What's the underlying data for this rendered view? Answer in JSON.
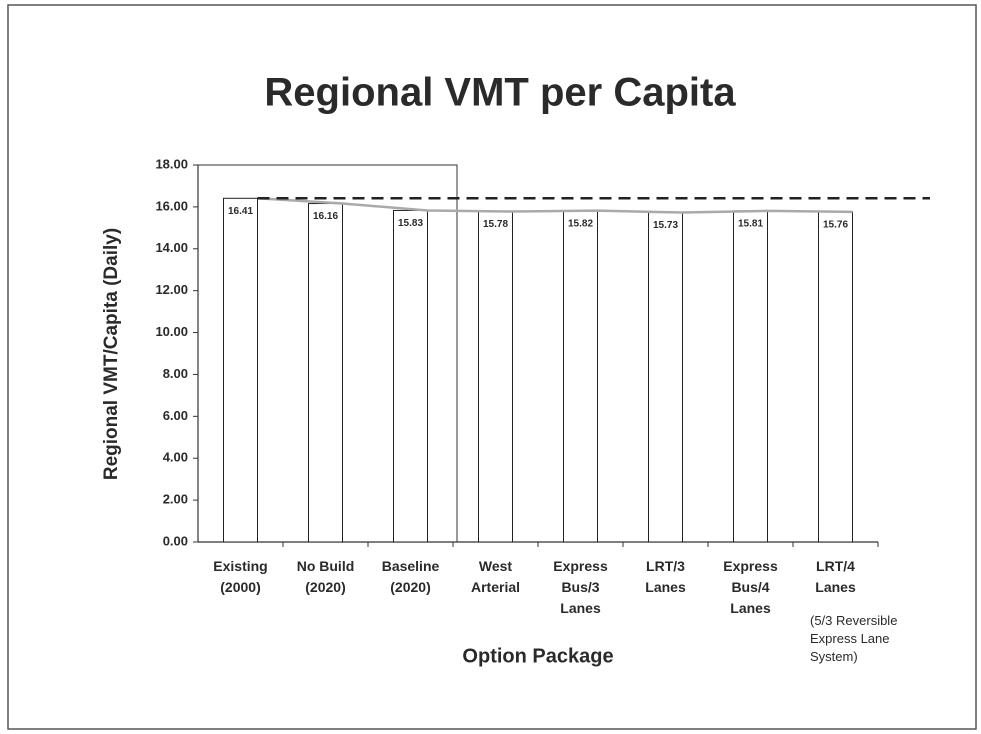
{
  "chart_data": {
    "type": "bar",
    "title": "Regional VMT per Capita",
    "y_label": "Regional VMT/Capita (Daily)",
    "x_label": "Option Package",
    "categories": [
      "Existing\n(2000)",
      "No Build\n(2020)",
      "Baseline\n(2020)",
      "West\nArterial",
      "Express\nBus/3\nLanes",
      "LRT/3\nLanes",
      "Express\nBus/4\nLanes",
      "LRT/4\nLanes"
    ],
    "values": [
      16.41,
      16.16,
      15.83,
      15.78,
      15.82,
      15.73,
      15.81,
      15.76
    ],
    "color": "#ffffff",
    "ylim": [
      0,
      18
    ],
    "yticks": [
      {
        "value": 0,
        "label": "0.00"
      },
      {
        "value": 2,
        "label": "2.00"
      },
      {
        "value": 4,
        "label": "4.00"
      },
      {
        "value": 6,
        "label": "6.00"
      },
      {
        "value": 8,
        "label": "8.00"
      },
      {
        "value": 10,
        "label": "10.00"
      },
      {
        "value": 12,
        "label": "12.00"
      },
      {
        "value": 14,
        "label": "14.00"
      },
      {
        "value": 16,
        "label": "16.00"
      },
      {
        "value": 18,
        "label": "18.00"
      }
    ],
    "annotation": "(5/3 Reversible\nExpress Lane\nSystem)",
    "grid": false
  }
}
